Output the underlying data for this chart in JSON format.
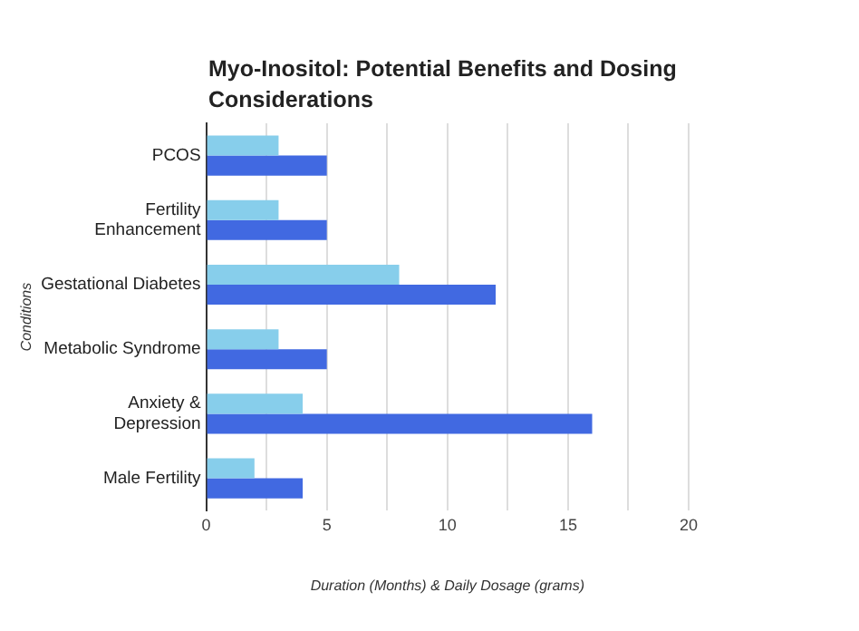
{
  "chart_data": {
    "type": "bar",
    "orientation": "horizontal",
    "title": "Myo-Inositol: Potential Benefits and Dosing Considerations",
    "xlabel": "Duration (Months) & Daily Dosage (grams)",
    "ylabel": "Conditions",
    "categories": [
      "PCOS",
      "Fertility\nEnhancement",
      "Gestational Diabetes",
      "Metabolic Syndrome",
      "Anxiety &\nDepression",
      "Male Fertility"
    ],
    "series": [
      {
        "color": "#87ceeb",
        "values": [
          3,
          3,
          8,
          3,
          4,
          2
        ]
      },
      {
        "color": "#4169e1",
        "values": [
          5,
          5,
          12,
          5,
          16,
          4
        ]
      }
    ],
    "xlim": [
      0,
      20
    ],
    "xticks": [
      0,
      {
        "value": 2.5,
        "label": null
      },
      5,
      {
        "value": 7.5,
        "label": null
      },
      10,
      {
        "value": 12.5,
        "label": null
      },
      15,
      {
        "value": 17.5,
        "label": null
      },
      20
    ],
    "grid": "x",
    "legend": false
  }
}
